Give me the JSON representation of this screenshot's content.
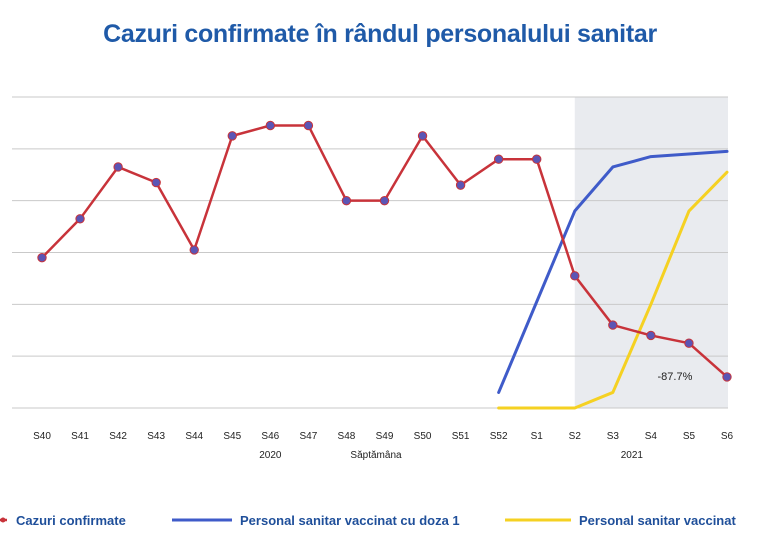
{
  "chart_data": {
    "type": "line",
    "title": "Cazuri confirmate în rândul personalului sanitar",
    "xlabel": "Săptămâna",
    "categories": [
      "S40",
      "S41",
      "S42",
      "S43",
      "S44",
      "S45",
      "S46",
      "S47",
      "S48",
      "S49",
      "S50",
      "S51",
      "S52",
      "S1",
      "S2",
      "S3",
      "S4",
      "S5",
      "S6"
    ],
    "groups": [
      {
        "label": "2020",
        "from": 0,
        "to": 12
      },
      {
        "label": "2021",
        "from": 13,
        "to": 18
      }
    ],
    "series": [
      {
        "name": "Cazuri confirmate",
        "color": "#c8333a",
        "marker": "#5b55b5",
        "values": [
          58,
          73,
          93,
          87,
          61,
          105,
          109,
          109,
          80,
          80,
          105,
          86,
          96,
          96,
          51,
          32,
          28,
          25,
          12
        ]
      },
      {
        "name": "Personal sanitar vaccinat cu doza 1",
        "color": "#3f5bc9",
        "values": [
          null,
          null,
          null,
          null,
          null,
          null,
          null,
          null,
          null,
          null,
          null,
          null,
          6,
          41,
          76,
          93,
          97,
          98,
          99
        ]
      },
      {
        "name": "Personal sanitar vaccinat",
        "color": "#f5d122",
        "values": [
          null,
          null,
          null,
          null,
          null,
          null,
          null,
          null,
          null,
          null,
          null,
          null,
          0,
          0,
          0,
          6,
          40,
          76,
          91
        ]
      }
    ],
    "ylim": [
      0,
      120
    ],
    "grid": true,
    "highlight_from": "S2",
    "annotation": {
      "text": "-87.7%",
      "at": "S5"
    },
    "legend": "bottom"
  }
}
